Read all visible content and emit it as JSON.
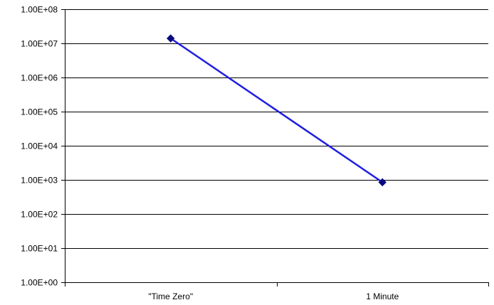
{
  "chart_data": {
    "type": "line",
    "title": "",
    "xlabel": "",
    "ylabel": "",
    "y_scale": "log",
    "ylim": [
      1,
      100000000
    ],
    "grid": true,
    "legend": "none",
    "categories": [
      "\"Time Zero\"",
      "1 Minute"
    ],
    "y_tick_labels": [
      "1.00E+00",
      "1.00E+01",
      "1.00E+02",
      "1.00E+03",
      "1.00E+04",
      "1.00E+05",
      "1.00E+06",
      "1.00E+07",
      "1.00E+08"
    ],
    "series": [
      {
        "values": [
          14000000,
          850
        ],
        "color": "#1f1fe0",
        "marker": "diamond",
        "marker_color": "#0a0a80"
      }
    ]
  }
}
